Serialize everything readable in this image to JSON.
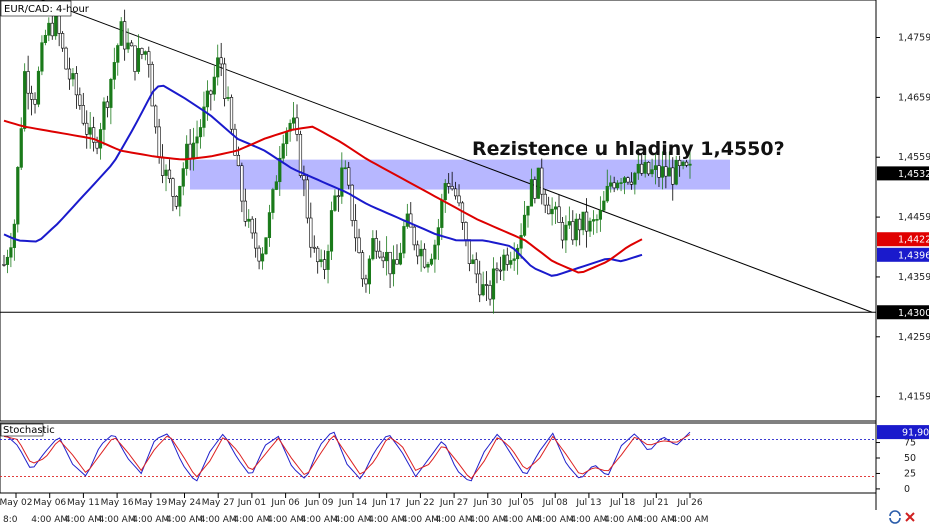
{
  "chart_data": [
    {
      "type": "candlestick",
      "title": "EUR/CAD: 4-hour",
      "annotation": "Rezistence u hladiny 1,4550?",
      "y_ticks": [
        1.4759,
        1.4659,
        1.4559,
        1.4459,
        1.4359,
        1.4259,
        1.4159
      ],
      "y_tick_labels": [
        "1,4759",
        "1,4659",
        "1,4559",
        "1,4459",
        "1,4359",
        "1,4259",
        "1,4159"
      ],
      "ylim": [
        1.412,
        1.482
      ],
      "x_date_labels": [
        "May 02",
        "May 06",
        "May 11",
        "May 16",
        "May 19",
        "May 24",
        "May 27",
        "Jun 01",
        "Jun 06",
        "Jun 09",
        "Jun 14",
        "Jun 17",
        "Jun 22",
        "Jun 27",
        "Jun 30",
        "Jul 05",
        "Jul 08",
        "Jul 13",
        "Jul 18",
        "Jul 21",
        "Jul 26"
      ],
      "x_time_labels": [
        "8:0",
        "4:00 AM",
        "4:00 AM",
        "4:00 AM",
        "4:00 AM",
        "4:00 AM",
        "4:00 AM",
        "4:00 AM",
        "4:00 AM",
        "4:00 AM",
        "4:00 AM",
        "4:00 AM",
        "4:00 AM",
        "4:00 AM",
        "4:00 AM",
        "4:00 AM",
        "4:00 AM",
        "4:00 AM",
        "4:00 AM",
        "4:00 AM",
        "4:00 AM"
      ],
      "price_tags": [
        {
          "label": "1,4532",
          "value": 1.4532,
          "color": "#000000"
        },
        {
          "label": "1,4422",
          "value": 1.4422,
          "color": "#e00000"
        },
        {
          "label": "1,4396",
          "value": 1.4396,
          "color": "#1a1acc"
        },
        {
          "label": "1,4300",
          "value": 1.43,
          "color": "#000000"
        }
      ],
      "resistance_zone": {
        "from": 1.4505,
        "to": 1.4555,
        "color": "#aaaaff"
      },
      "support_level": 1.43,
      "trendline": {
        "start": 1.4845,
        "end": 1.43
      },
      "series": [
        {
          "name": "",
          "color": "#1a1acc",
          "keypoints": [
            [
              0,
              1.443
            ],
            [
              0.02,
              1.442
            ],
            [
              0.05,
              1.4418
            ],
            [
              0.08,
              1.445
            ],
            [
              0.12,
              1.45
            ],
            [
              0.16,
              1.455
            ],
            [
              0.19,
              1.461
            ],
            [
              0.22,
              1.4675
            ],
            [
              0.23,
              1.468
            ],
            [
              0.26,
              1.466
            ],
            [
              0.3,
              1.463
            ],
            [
              0.34,
              1.459
            ],
            [
              0.38,
              1.457
            ],
            [
              0.42,
              1.454
            ],
            [
              0.46,
              1.452
            ],
            [
              0.5,
              1.45
            ],
            [
              0.53,
              1.448
            ],
            [
              0.57,
              1.446
            ],
            [
              0.6,
              1.4445
            ],
            [
              0.63,
              1.443
            ],
            [
              0.66,
              1.442
            ],
            [
              0.7,
              1.442
            ],
            [
              0.74,
              1.441
            ],
            [
              0.77,
              1.4375
            ],
            [
              0.8,
              1.436
            ],
            [
              0.84,
              1.4375
            ],
            [
              0.88,
              1.439
            ],
            [
              0.9,
              1.4385
            ],
            [
              0.93,
              1.4396
            ]
          ]
        },
        {
          "name": "",
          "color": "#dd0000",
          "keypoints": [
            [
              0,
              1.462
            ],
            [
              0.03,
              1.461
            ],
            [
              0.08,
              1.46
            ],
            [
              0.13,
              1.459
            ],
            [
              0.17,
              1.457
            ],
            [
              0.22,
              1.456
            ],
            [
              0.26,
              1.4555
            ],
            [
              0.3,
              1.456
            ],
            [
              0.34,
              1.457
            ],
            [
              0.38,
              1.459
            ],
            [
              0.42,
              1.4605
            ],
            [
              0.45,
              1.461
            ],
            [
              0.49,
              1.4585
            ],
            [
              0.53,
              1.4555
            ],
            [
              0.57,
              1.453
            ],
            [
              0.61,
              1.4505
            ],
            [
              0.65,
              1.448
            ],
            [
              0.69,
              1.4455
            ],
            [
              0.72,
              1.444
            ],
            [
              0.76,
              1.442
            ],
            [
              0.8,
              1.4385
            ],
            [
              0.84,
              1.4365
            ],
            [
              0.88,
              1.4385
            ],
            [
              0.91,
              1.441
            ],
            [
              0.93,
              1.4422
            ]
          ]
        }
      ],
      "price_keypoints": [
        [
          0,
          1.438
        ],
        [
          0.015,
          1.445
        ],
        [
          0.03,
          1.47
        ],
        [
          0.045,
          1.466
        ],
        [
          0.06,
          1.476
        ],
        [
          0.075,
          1.479
        ],
        [
          0.09,
          1.471
        ],
        [
          0.11,
          1.465
        ],
        [
          0.13,
          1.457
        ],
        [
          0.15,
          1.466
        ],
        [
          0.17,
          1.477
        ],
        [
          0.19,
          1.472
        ],
        [
          0.21,
          1.474
        ],
        [
          0.22,
          1.461
        ],
        [
          0.235,
          1.453
        ],
        [
          0.25,
          1.449
        ],
        [
          0.265,
          1.456
        ],
        [
          0.28,
          1.459
        ],
        [
          0.3,
          1.466
        ],
        [
          0.315,
          1.473
        ],
        [
          0.33,
          1.461
        ],
        [
          0.345,
          1.45
        ],
        [
          0.36,
          1.442
        ],
        [
          0.375,
          1.44
        ],
        [
          0.39,
          1.447
        ],
        [
          0.405,
          1.46
        ],
        [
          0.42,
          1.462
        ],
        [
          0.435,
          1.453
        ],
        [
          0.45,
          1.44
        ],
        [
          0.465,
          1.436
        ],
        [
          0.48,
          1.448
        ],
        [
          0.495,
          1.454
        ],
        [
          0.51,
          1.445
        ],
        [
          0.525,
          1.434
        ],
        [
          0.54,
          1.443
        ],
        [
          0.555,
          1.44
        ],
        [
          0.57,
          1.436
        ],
        [
          0.585,
          1.445
        ],
        [
          0.6,
          1.442
        ],
        [
          0.615,
          1.439
        ],
        [
          0.63,
          1.442
        ],
        [
          0.645,
          1.453
        ],
        [
          0.66,
          1.449
        ],
        [
          0.675,
          1.44
        ],
        [
          0.69,
          1.436
        ],
        [
          0.705,
          1.432
        ],
        [
          0.72,
          1.438
        ],
        [
          0.735,
          1.44
        ],
        [
          0.75,
          1.442
        ],
        [
          0.765,
          1.45
        ],
        [
          0.78,
          1.452
        ],
        [
          0.795,
          1.448
        ],
        [
          0.81,
          1.444
        ],
        [
          0.825,
          1.443
        ],
        [
          0.84,
          1.445
        ],
        [
          0.855,
          1.444
        ],
        [
          0.87,
          1.446
        ],
        [
          0.885,
          1.452
        ],
        [
          0.9,
          1.4532
        ]
      ]
    },
    {
      "type": "line",
      "title": "Stochastic",
      "y_ticks": [
        91.9,
        75,
        50,
        25,
        0
      ],
      "y_tick_labels": [
        "91,90",
        "75",
        "50",
        "25",
        "0"
      ],
      "ylim": [
        -5,
        105
      ],
      "overbought": 80,
      "oversold": 20,
      "series": [
        {
          "name": "",
          "color": "#2222cc",
          "keypoints": [
            [
              0,
              90
            ],
            [
              0.02,
              70
            ],
            [
              0.04,
              30
            ],
            [
              0.06,
              60
            ],
            [
              0.08,
              85
            ],
            [
              0.1,
              40
            ],
            [
              0.12,
              20
            ],
            [
              0.14,
              70
            ],
            [
              0.16,
              90
            ],
            [
              0.18,
              50
            ],
            [
              0.2,
              25
            ],
            [
              0.22,
              80
            ],
            [
              0.24,
              90
            ],
            [
              0.26,
              40
            ],
            [
              0.28,
              10
            ],
            [
              0.3,
              60
            ],
            [
              0.32,
              90
            ],
            [
              0.34,
              50
            ],
            [
              0.36,
              20
            ],
            [
              0.38,
              70
            ],
            [
              0.4,
              85
            ],
            [
              0.42,
              35
            ],
            [
              0.44,
              15
            ],
            [
              0.46,
              70
            ],
            [
              0.48,
              95
            ],
            [
              0.5,
              40
            ],
            [
              0.52,
              15
            ],
            [
              0.54,
              60
            ],
            [
              0.56,
              90
            ],
            [
              0.58,
              60
            ],
            [
              0.6,
              20
            ],
            [
              0.62,
              50
            ],
            [
              0.64,
              80
            ],
            [
              0.66,
              30
            ],
            [
              0.68,
              10
            ],
            [
              0.7,
              60
            ],
            [
              0.72,
              90
            ],
            [
              0.74,
              55
            ],
            [
              0.76,
              20
            ],
            [
              0.78,
              60
            ],
            [
              0.8,
              90
            ],
            [
              0.82,
              40
            ],
            [
              0.84,
              15
            ],
            [
              0.86,
              40
            ],
            [
              0.88,
              20
            ],
            [
              0.9,
              70
            ],
            [
              0.92,
              90
            ],
            [
              0.94,
              60
            ],
            [
              0.96,
              85
            ],
            [
              0.98,
              70
            ],
            [
              1.0,
              91.9
            ]
          ]
        },
        {
          "name": "",
          "color": "#dd2222",
          "keypoints": [
            [
              0,
              85
            ],
            [
              0.02,
              80
            ],
            [
              0.04,
              40
            ],
            [
              0.06,
              50
            ],
            [
              0.08,
              80
            ],
            [
              0.1,
              55
            ],
            [
              0.12,
              25
            ],
            [
              0.14,
              55
            ],
            [
              0.16,
              85
            ],
            [
              0.18,
              60
            ],
            [
              0.2,
              30
            ],
            [
              0.22,
              65
            ],
            [
              0.24,
              88
            ],
            [
              0.26,
              55
            ],
            [
              0.28,
              18
            ],
            [
              0.3,
              45
            ],
            [
              0.32,
              85
            ],
            [
              0.34,
              62
            ],
            [
              0.36,
              28
            ],
            [
              0.38,
              55
            ],
            [
              0.4,
              82
            ],
            [
              0.42,
              48
            ],
            [
              0.44,
              20
            ],
            [
              0.46,
              55
            ],
            [
              0.48,
              88
            ],
            [
              0.5,
              55
            ],
            [
              0.52,
              22
            ],
            [
              0.54,
              45
            ],
            [
              0.56,
              85
            ],
            [
              0.58,
              70
            ],
            [
              0.6,
              30
            ],
            [
              0.62,
              40
            ],
            [
              0.64,
              72
            ],
            [
              0.66,
              45
            ],
            [
              0.68,
              15
            ],
            [
              0.7,
              45
            ],
            [
              0.72,
              85
            ],
            [
              0.74,
              65
            ],
            [
              0.76,
              30
            ],
            [
              0.78,
              48
            ],
            [
              0.8,
              85
            ],
            [
              0.82,
              55
            ],
            [
              0.84,
              22
            ],
            [
              0.86,
              35
            ],
            [
              0.88,
              28
            ],
            [
              0.9,
              55
            ],
            [
              0.92,
              85
            ],
            [
              0.94,
              70
            ],
            [
              0.96,
              78
            ],
            [
              0.98,
              75
            ],
            [
              1.0,
              88
            ]
          ]
        }
      ]
    }
  ],
  "colors": {
    "bull": "#1a7a1a",
    "bear": "#000000",
    "ma_fast": "#1a1acc",
    "ma_slow": "#dd0000"
  },
  "icons": {
    "sync": "sync-icon",
    "close": "close-x-icon"
  }
}
